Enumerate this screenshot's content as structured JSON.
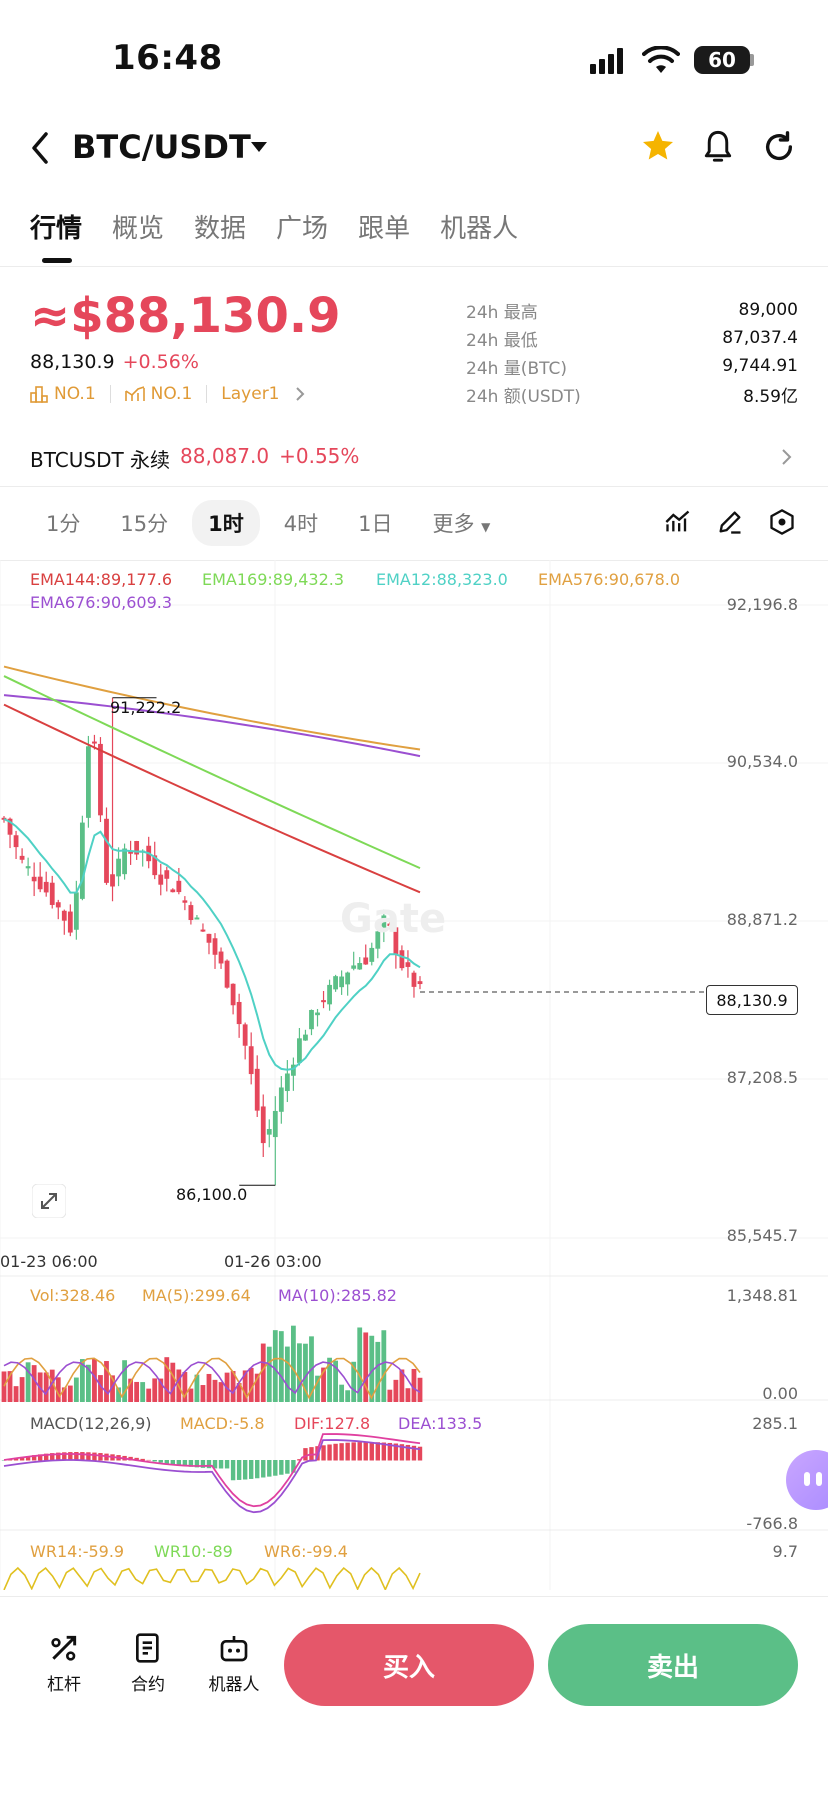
{
  "status_bar": {
    "time": "16:48",
    "battery": "60"
  },
  "header": {
    "title": "BTC/USDT"
  },
  "tabs": [
    "行情",
    "概览",
    "数据",
    "广场",
    "跟单",
    "机器人"
  ],
  "price": {
    "main": "≈$88,130.9",
    "last": "88,130.9",
    "change": "+0.56%",
    "badges": [
      "NO.1",
      "NO.1",
      "Layer1"
    ]
  },
  "stats": [
    {
      "k": "24h  最高",
      "v": "89,000"
    },
    {
      "k": "24h  最低",
      "v": "87,037.4"
    },
    {
      "k": "24h  量(BTC)",
      "v": "9,744.91"
    },
    {
      "k": "24h  额(USDT)",
      "v": "8.59亿"
    }
  ],
  "perp": {
    "name": "BTCUSDT 永续",
    "price": "88,087.0",
    "change": "+0.55%"
  },
  "time_tabs": [
    "1分",
    "15分",
    "1时",
    "4时",
    "1日",
    "更多"
  ],
  "ema": {
    "ema144": "EMA144:89,177.6",
    "ema169": "EMA169:89,432.3",
    "ema12": "EMA12:88,323.0",
    "ema576": "EMA576:90,678.0",
    "ema676": "EMA676:90,609.3"
  },
  "price_axis": [
    "92,196.8",
    "90,534.0",
    "88,871.2",
    "87,208.5",
    "85,545.7"
  ],
  "high_marker": "91,222.2",
  "low_marker": "86,100.0",
  "current_tag": "88,130.9",
  "watermark": "Gate",
  "time_axis": [
    "01-23 06:00",
    "01-26 03:00"
  ],
  "volume": {
    "vol": "Vol:328.46",
    "ma5": "MA(5):299.64",
    "ma10": "MA(10):285.82",
    "axis_max": "1,348.81",
    "axis_min": "0.00"
  },
  "macd": {
    "label": "MACD(12,26,9)",
    "macd": "MACD:-5.8",
    "dif": "DIF:127.8",
    "dea": "DEA:133.5",
    "axis_max": "285.1",
    "axis_min": "-766.8"
  },
  "wr": {
    "wr14": "WR14:-59.9",
    "wr10": "WR10:-89",
    "wr6": "WR6:-99.4",
    "axis_max": "9.7"
  },
  "bottom_nav": [
    "杠杆",
    "合约",
    "机器人"
  ],
  "buttons": {
    "buy": "买入",
    "sell": "卖出"
  },
  "colors": {
    "up": "#e5475b",
    "down": "#5bbf87",
    "ema144": "#d94040",
    "ema169": "#7ed957",
    "ema12": "#4fd1c5",
    "ema576": "#e0a040",
    "ema676": "#9b4fd1"
  },
  "chart_data": {
    "type": "candlestick",
    "price_range": [
      85545.7,
      92196.8
    ],
    "close_path": [
      89950,
      89500,
      89300,
      89050,
      88750,
      91100,
      89150,
      89650,
      89600,
      89350,
      89200,
      88900,
      88600,
      88200,
      87500,
      86500,
      87100,
      87600,
      87950,
      88200,
      88400,
      88500,
      88900,
      88400,
      88131
    ]
  }
}
